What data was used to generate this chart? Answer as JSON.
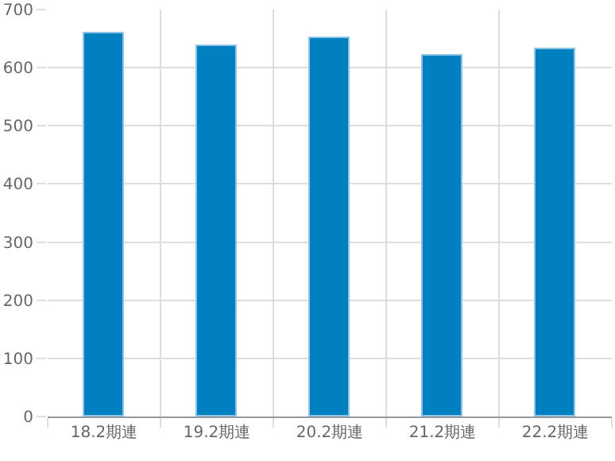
{
  "chart_data": {
    "type": "bar",
    "categories": [
      "18.2期連",
      "19.2期連",
      "20.2期連",
      "21.2期連",
      "22.2期連"
    ],
    "values": [
      659,
      638,
      652,
      621,
      633
    ],
    "color": "#0080c0",
    "ylim": [
      0,
      700
    ],
    "yticks": [
      0,
      100,
      200,
      300,
      400,
      500,
      600,
      700
    ],
    "grid": true
  }
}
